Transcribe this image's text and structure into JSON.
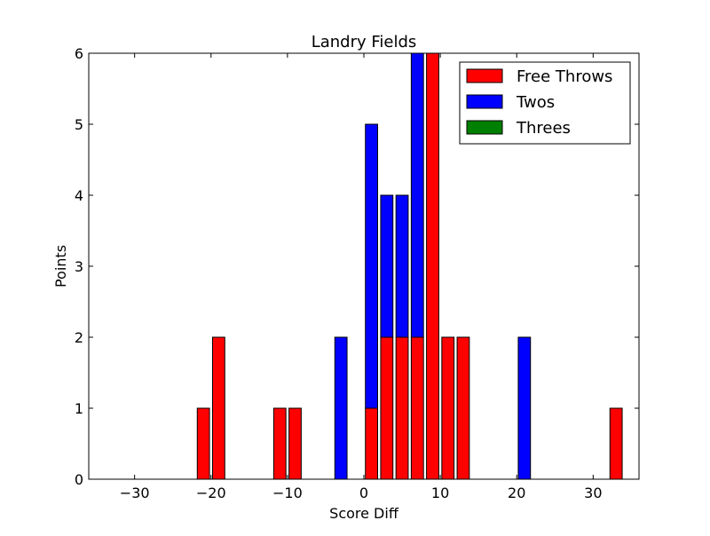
{
  "chart_data": {
    "type": "bar",
    "title": "Landry Fields",
    "xlabel": "Score Diff",
    "ylabel": "Points",
    "xlim": [
      -36,
      36
    ],
    "ylim": [
      0,
      6
    ],
    "xticks": [
      -30,
      -20,
      -10,
      0,
      10,
      20,
      30
    ],
    "xtick_labels": [
      "−30",
      "−20",
      "−10",
      "0",
      "10",
      "20",
      "30"
    ],
    "yticks": [
      0,
      1,
      2,
      3,
      4,
      5,
      6
    ],
    "ytick_labels": [
      "0",
      "1",
      "2",
      "3",
      "4",
      "5",
      "6"
    ],
    "bar_width": 1.6,
    "stacked": true,
    "x": [
      -35,
      -33,
      -31,
      -29,
      -27,
      -25,
      -23,
      -21,
      -19,
      -17,
      -15,
      -13,
      -11,
      -9,
      -7,
      -5,
      -3,
      -1,
      1,
      3,
      5,
      7,
      9,
      11,
      13,
      15,
      17,
      19,
      21,
      23,
      25,
      27,
      29,
      31,
      33
    ],
    "series": [
      {
        "name": "Free Throws",
        "color": "#ff0000",
        "values": [
          0,
          0,
          0,
          0,
          0,
          0,
          0,
          1,
          2,
          0,
          0,
          0,
          1,
          1,
          0,
          0,
          0,
          0,
          1,
          2,
          2,
          2,
          6,
          2,
          2,
          0,
          0,
          0,
          0,
          0,
          0,
          0,
          0,
          0,
          1
        ]
      },
      {
        "name": "Twos",
        "color": "#0000ff",
        "values": [
          0,
          0,
          0,
          0,
          0,
          0,
          0,
          0,
          0,
          0,
          0,
          0,
          0,
          0,
          0,
          0,
          2,
          0,
          4,
          2,
          2,
          4,
          0,
          0,
          0,
          0,
          0,
          0,
          2,
          0,
          0,
          0,
          0,
          0,
          0
        ]
      },
      {
        "name": "Threes",
        "color": "#008000",
        "values": [
          0,
          0,
          0,
          0,
          0,
          0,
          0,
          0,
          0,
          0,
          0,
          0,
          0,
          0,
          0,
          0,
          0,
          0,
          0,
          0,
          0,
          0,
          0,
          0,
          0,
          0,
          0,
          0,
          0,
          0,
          0,
          0,
          0,
          0,
          0
        ]
      }
    ],
    "grid": false,
    "legend_position": "top-right"
  }
}
